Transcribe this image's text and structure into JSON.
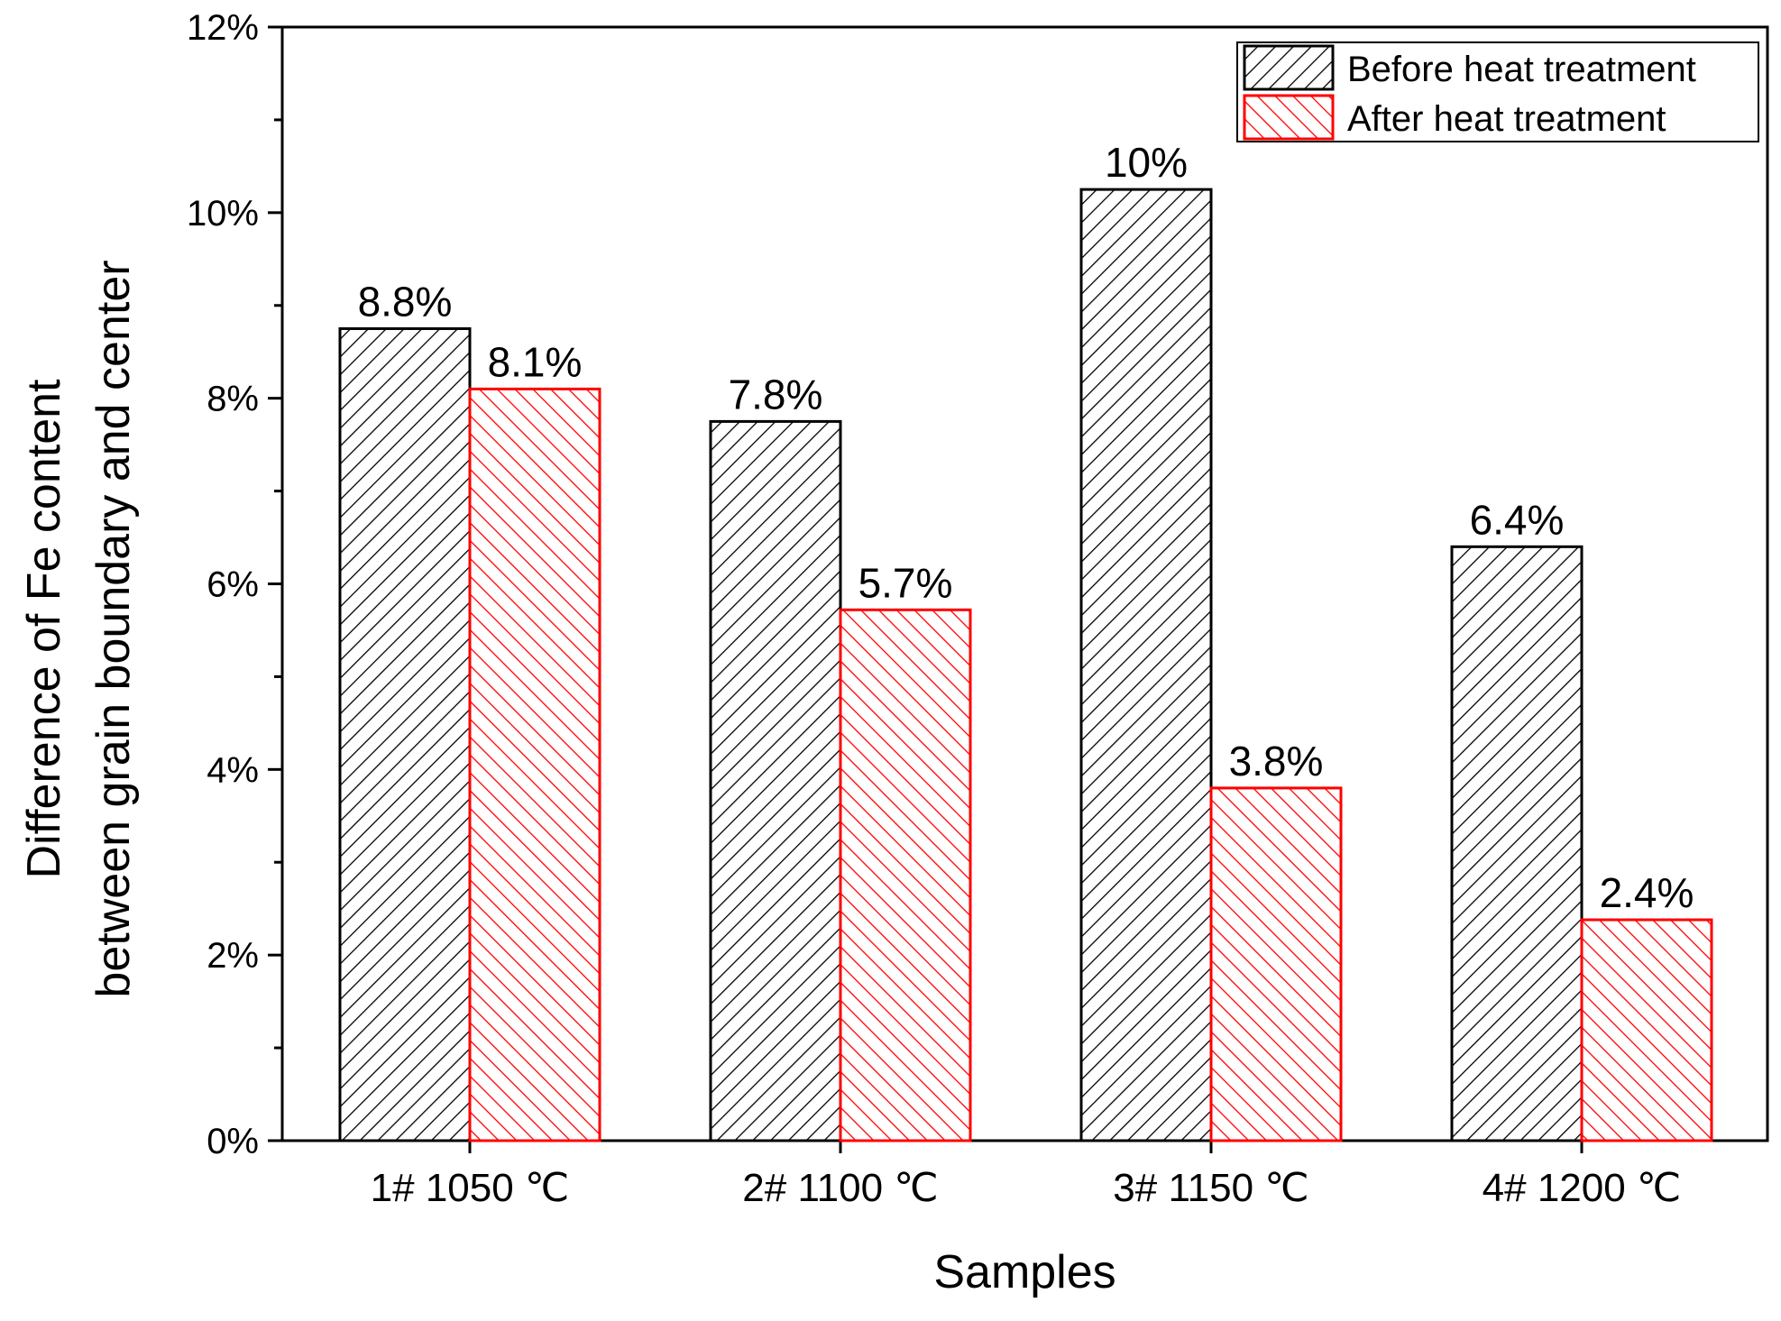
{
  "chart_data": {
    "type": "bar",
    "title": "",
    "xlabel": "Samples",
    "ylabel_lines": [
      "Difference of Fe content",
      "between grain boundary and center"
    ],
    "categories": [
      "1# 1050 ℃",
      "2# 1100 ℃",
      "3# 1150 ℃",
      "4# 1200 ℃"
    ],
    "series": [
      {
        "name": "Before heat treatment",
        "color": "#000000",
        "hatch": "forward",
        "values": [
          8.75,
          7.75,
          10.25,
          6.4
        ],
        "labels": [
          "8.8%",
          "7.8%",
          "10%",
          "6.4%"
        ]
      },
      {
        "name": "After heat treatment",
        "color": "#ff0000",
        "hatch": "backward",
        "values": [
          8.1,
          5.72,
          3.8,
          2.38
        ],
        "labels": [
          "8.1%",
          "5.7%",
          "3.8%",
          "2.4%"
        ]
      }
    ],
    "ylim": [
      0,
      12
    ],
    "y_ticks": [
      0,
      2,
      4,
      6,
      8,
      10,
      12
    ],
    "y_tick_labels": [
      "0%",
      "2%",
      "4%",
      "6%",
      "8%",
      "10%",
      "12%"
    ],
    "legend": "top-right",
    "grid": false
  }
}
